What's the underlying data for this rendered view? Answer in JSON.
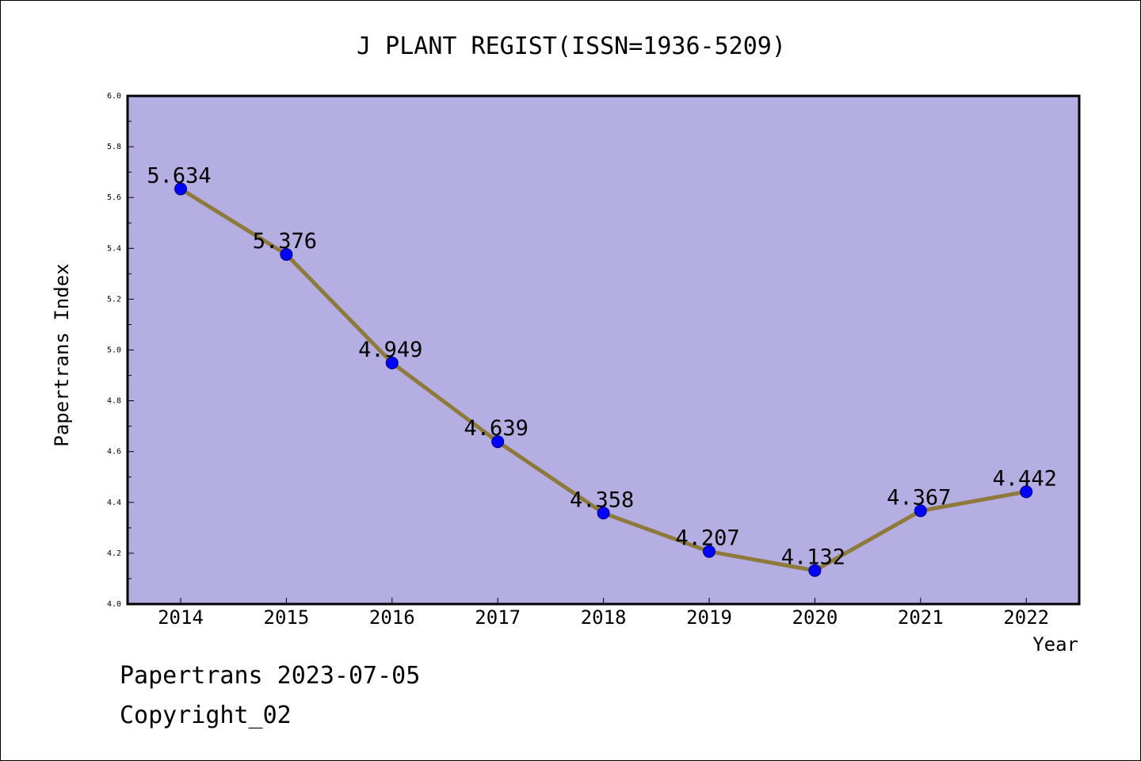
{
  "chart_data": {
    "type": "line",
    "title": "J PLANT REGIST(ISSN=1936-5209)",
    "xlabel": "Year",
    "ylabel": "Papertrans Index",
    "categories": [
      "2014",
      "2015",
      "2016",
      "2017",
      "2018",
      "2019",
      "2020",
      "2021",
      "2022"
    ],
    "series": [
      {
        "values": [
          5.634,
          5.376,
          4.949,
          4.639,
          4.358,
          4.207,
          4.132,
          4.367,
          4.442
        ]
      }
    ],
    "data_labels": [
      "5.634",
      "5.376",
      "4.949",
      "4.639",
      "4.358",
      "4.207",
      "4.132",
      "4.367",
      "4.442"
    ],
    "yticks": [
      "4.0",
      "4.2",
      "4.4",
      "4.6",
      "4.8",
      "5.0",
      "5.2",
      "5.4",
      "5.6",
      "5.8",
      "6.0"
    ],
    "ylim": [
      4.0,
      6.0
    ],
    "grid": false,
    "colors": {
      "plot_background": "#b4aee2",
      "line": "#8f7a3c",
      "marker": "#0000ff"
    }
  },
  "footer": {
    "source": "Papertrans 2023-07-05",
    "copyright": "Copyright_02"
  }
}
